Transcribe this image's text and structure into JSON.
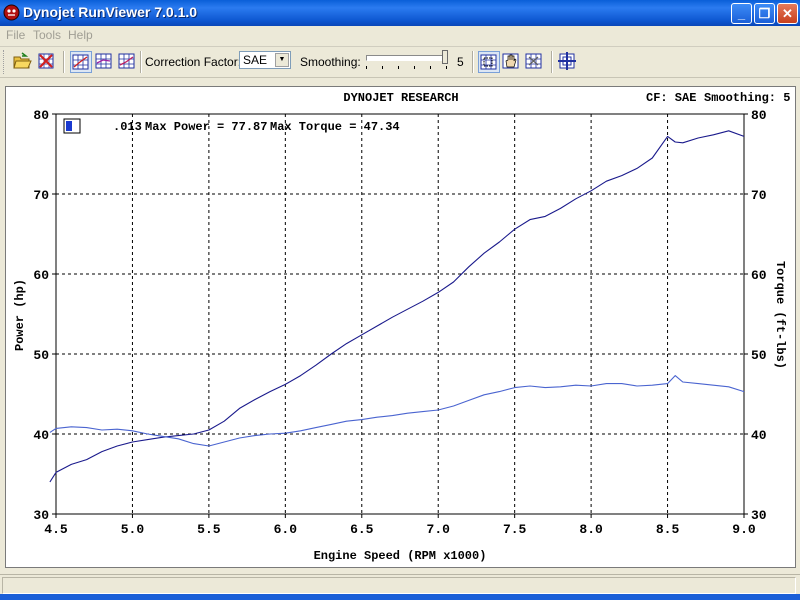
{
  "window": {
    "title": "Dynojet RunViewer 7.0.1.0",
    "minimize_glyph": "_",
    "maximize_glyph": "❐",
    "close_glyph": "✕"
  },
  "menu": {
    "items": [
      "File",
      "Tools",
      "Help"
    ]
  },
  "toolbar": {
    "correction_label": "Correction Factor:",
    "correction_value": "SAE",
    "smoothing_label": "Smoothing:",
    "smoothing_value": "5",
    "smoothing_level": 5,
    "smoothing_max": 5,
    "icons": [
      "open-file-icon",
      "close-run-icon",
      "graph-view-1-icon",
      "graph-view-2-icon",
      "graph-view-3-icon",
      "zoom-icon",
      "pan-hand-icon",
      "reset-zoom-icon",
      "crosshair-icon"
    ]
  },
  "chart_header": {
    "title": "DYNOJET RESEARCH",
    "cf_text": "CF: SAE",
    "smoothing_text": "Smoothing: 5",
    "run_label": ".013",
    "max_power_text": "Max Power = 77.87",
    "max_torque_text": "Max Torque = 47.34"
  },
  "chart_data": {
    "type": "line",
    "title": "DYNOJET RESEARCH",
    "xlabel": "Engine Speed (RPM x1000)",
    "ylabel": "Power (hp)",
    "y2label": "Torque (ft-lbs)",
    "xlim": [
      4.5,
      9.0
    ],
    "ylim": [
      30,
      80
    ],
    "y2lim": [
      30,
      80
    ],
    "xticks": [
      "4.5",
      "5.0",
      "5.5",
      "6.0",
      "6.5",
      "7.0",
      "7.5",
      "8.0",
      "8.5",
      "9.0"
    ],
    "yticks": [
      "30",
      "40",
      "50",
      "60",
      "70",
      "80"
    ],
    "grid": true,
    "colors": {
      "power": "#1a1a8c",
      "torque": "#4a64d0"
    },
    "series": [
      {
        "key": "power",
        "x": [
          4.46,
          4.5,
          4.6,
          4.7,
          4.8,
          4.9,
          5.0,
          5.1,
          5.2,
          5.3,
          5.4,
          5.5,
          5.6,
          5.7,
          5.8,
          5.9,
          6.0,
          6.1,
          6.2,
          6.3,
          6.4,
          6.5,
          6.6,
          6.7,
          6.8,
          6.9,
          7.0,
          7.1,
          7.2,
          7.3,
          7.4,
          7.5,
          7.6,
          7.7,
          7.8,
          7.9,
          8.0,
          8.1,
          8.2,
          8.3,
          8.4,
          8.5,
          8.55,
          8.6,
          8.7,
          8.8,
          8.9,
          9.0
        ],
        "values": [
          34.0,
          35.2,
          36.2,
          36.8,
          37.8,
          38.5,
          39.0,
          39.3,
          39.6,
          39.8,
          40.0,
          40.5,
          41.6,
          43.2,
          44.3,
          45.3,
          46.2,
          47.3,
          48.6,
          50.0,
          51.3,
          52.4,
          53.5,
          54.6,
          55.6,
          56.6,
          57.7,
          59.0,
          60.9,
          62.6,
          64.0,
          65.6,
          66.8,
          67.2,
          68.2,
          69.4,
          70.4,
          71.6,
          72.3,
          73.2,
          74.5,
          77.2,
          76.5,
          76.4,
          77.0,
          77.4,
          77.9,
          77.2
        ]
      },
      {
        "key": "torque",
        "x": [
          4.46,
          4.5,
          4.6,
          4.7,
          4.8,
          4.9,
          5.0,
          5.1,
          5.2,
          5.3,
          5.4,
          5.5,
          5.6,
          5.7,
          5.8,
          5.9,
          6.0,
          6.1,
          6.2,
          6.3,
          6.4,
          6.5,
          6.6,
          6.7,
          6.8,
          6.9,
          7.0,
          7.1,
          7.2,
          7.3,
          7.4,
          7.5,
          7.6,
          7.7,
          7.8,
          7.9,
          8.0,
          8.1,
          8.2,
          8.3,
          8.4,
          8.5,
          8.55,
          8.6,
          8.7,
          8.8,
          8.9,
          9.0
        ],
        "values": [
          40.2,
          40.7,
          40.9,
          40.8,
          40.5,
          40.6,
          40.4,
          40.0,
          39.7,
          39.4,
          38.8,
          38.5,
          39.0,
          39.5,
          39.8,
          40.0,
          40.1,
          40.4,
          40.8,
          41.2,
          41.6,
          41.8,
          42.1,
          42.3,
          42.6,
          42.8,
          43.0,
          43.5,
          44.2,
          44.9,
          45.3,
          45.8,
          46.0,
          45.8,
          45.9,
          46.1,
          46.0,
          46.3,
          46.3,
          46.0,
          46.1,
          46.3,
          47.3,
          46.5,
          46.3,
          46.1,
          45.9,
          45.3
        ]
      }
    ]
  }
}
